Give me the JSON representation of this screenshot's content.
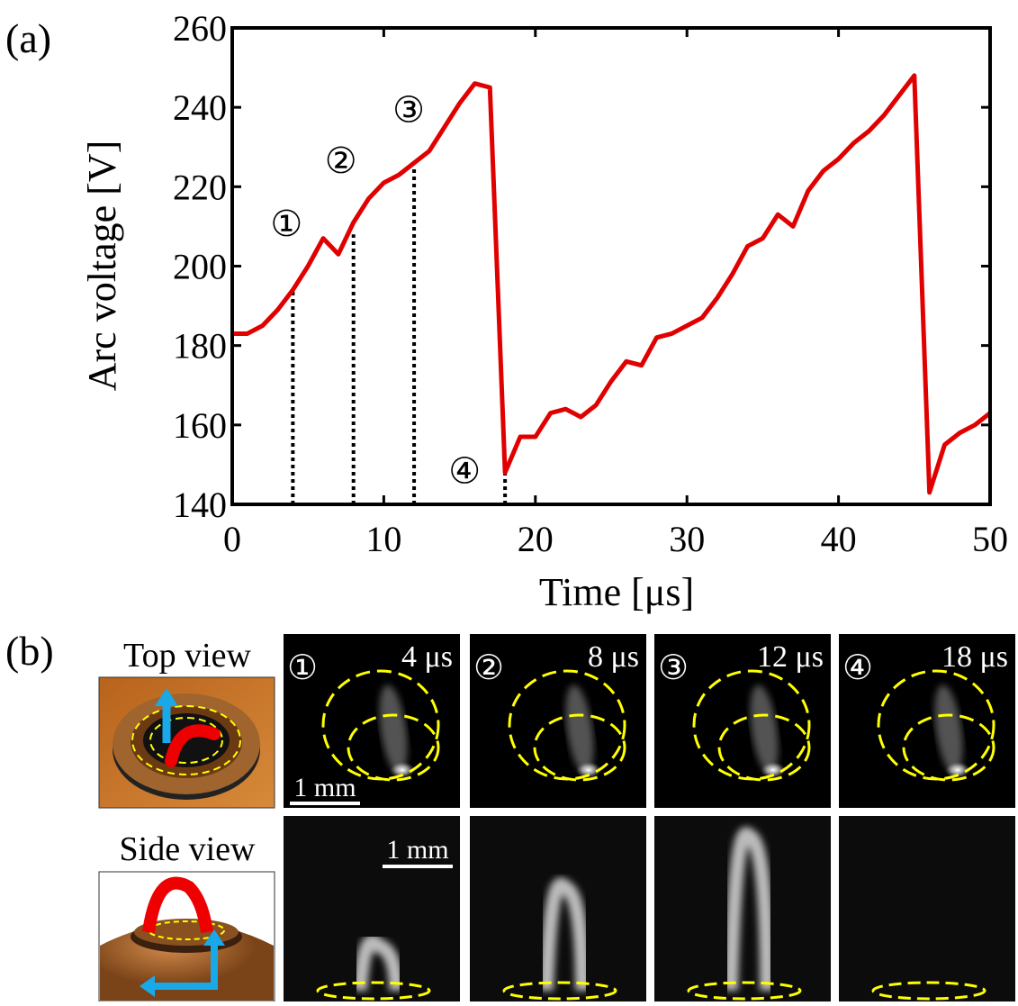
{
  "chart_data": {
    "type": "line",
    "panel_label": "(a)",
    "x_label": "Time [μs]",
    "y_label": "Arc voltage [V]",
    "color": "#e00000",
    "x": [
      0,
      1,
      2,
      3,
      4,
      5,
      6,
      7,
      8,
      9,
      10,
      11,
      12,
      13,
      14,
      15,
      16,
      17,
      18,
      19,
      20,
      21,
      22,
      23,
      24,
      25,
      26,
      27,
      28,
      29,
      30,
      31,
      32,
      33,
      34,
      35,
      36,
      37,
      38,
      39,
      40,
      41,
      42,
      43,
      44,
      45,
      46,
      47,
      48,
      49,
      50
    ],
    "values": [
      183,
      183,
      185,
      189,
      194,
      200,
      207,
      203,
      211,
      217,
      221,
      223,
      226,
      229,
      235,
      241,
      246,
      245,
      148,
      157,
      157,
      163,
      164,
      162,
      165,
      171,
      176,
      175,
      182,
      183,
      185,
      187,
      192,
      198,
      205,
      207,
      213,
      210,
      219,
      224,
      227,
      231,
      234,
      238,
      243,
      248,
      143,
      155,
      158,
      160,
      163
    ],
    "xlim": [
      0,
      50
    ],
    "xticks": [
      0,
      10,
      20,
      30,
      40,
      50
    ],
    "ylim": [
      140,
      260
    ],
    "yticks": [
      140,
      160,
      180,
      200,
      220,
      240,
      260
    ],
    "markers": [
      {
        "label": "①",
        "x": 4,
        "y": 194
      },
      {
        "label": "②",
        "x": 8,
        "y": 208
      },
      {
        "label": "③",
        "x": 12,
        "y": 225
      },
      {
        "label": "④",
        "x": 18,
        "y": 148
      }
    ]
  },
  "panel_b": {
    "label": "(b)",
    "rows": [
      "Top view",
      "Side view"
    ],
    "frames": [
      {
        "label": "①",
        "time": "4 μs"
      },
      {
        "label": "②",
        "time": "8 μs"
      },
      {
        "label": "③",
        "time": "12 μs"
      },
      {
        "label": "④",
        "time": "18 μs"
      }
    ],
    "scale_bars": [
      "1 mm",
      "1 mm"
    ]
  }
}
